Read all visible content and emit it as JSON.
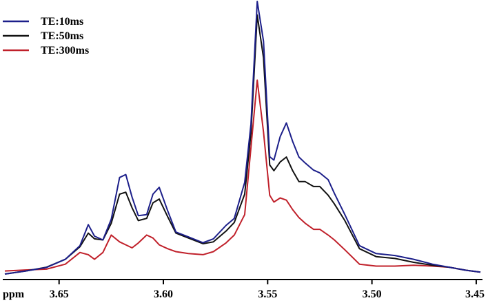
{
  "chart_data": {
    "type": "line",
    "title": "",
    "xlabel": "ppm",
    "ylabel": "",
    "x_reversed": true,
    "xlim": [
      3.677,
      3.447
    ],
    "ylim": [
      0,
      1.0
    ],
    "grid": false,
    "legend_position": "top-left",
    "x_ticks": [
      {
        "value": 3.65,
        "label": "3.65"
      },
      {
        "value": 3.6,
        "label": "3.60"
      },
      {
        "value": 3.55,
        "label": "3.55"
      },
      {
        "value": 3.5,
        "label": "3.50"
      },
      {
        "value": 3.45,
        "label": "3.45"
      }
    ],
    "series": [
      {
        "name": "TE:10ms",
        "color": "#1c1f8a",
        "points": [
          [
            3.676,
            0.0
          ],
          [
            3.666,
            0.011
          ],
          [
            3.656,
            0.024
          ],
          [
            3.647,
            0.054
          ],
          [
            3.64,
            0.104
          ],
          [
            3.636,
            0.181
          ],
          [
            3.633,
            0.139
          ],
          [
            3.629,
            0.125
          ],
          [
            3.625,
            0.201
          ],
          [
            3.621,
            0.354
          ],
          [
            3.618,
            0.365
          ],
          [
            3.615,
            0.282
          ],
          [
            3.612,
            0.214
          ],
          [
            3.608,
            0.218
          ],
          [
            3.605,
            0.293
          ],
          [
            3.602,
            0.318
          ],
          [
            3.598,
            0.233
          ],
          [
            3.594,
            0.154
          ],
          [
            3.588,
            0.136
          ],
          [
            3.581,
            0.115
          ],
          [
            3.576,
            0.129
          ],
          [
            3.57,
            0.178
          ],
          [
            3.566,
            0.204
          ],
          [
            3.561,
            0.336
          ],
          [
            3.558,
            0.55
          ],
          [
            3.555,
            1.0
          ],
          [
            3.552,
            0.854
          ],
          [
            3.549,
            0.43
          ],
          [
            3.547,
            0.418
          ],
          [
            3.544,
            0.504
          ],
          [
            3.541,
            0.554
          ],
          [
            3.538,
            0.486
          ],
          [
            3.535,
            0.429
          ],
          [
            3.532,
            0.407
          ],
          [
            3.528,
            0.381
          ],
          [
            3.525,
            0.371
          ],
          [
            3.521,
            0.346
          ],
          [
            3.518,
            0.296
          ],
          [
            3.513,
            0.218
          ],
          [
            3.506,
            0.104
          ],
          [
            3.498,
            0.075
          ],
          [
            3.489,
            0.068
          ],
          [
            3.48,
            0.054
          ],
          [
            3.471,
            0.036
          ],
          [
            3.463,
            0.025
          ],
          [
            3.455,
            0.014
          ],
          [
            3.448,
            0.007
          ]
        ]
      },
      {
        "name": "TE:50ms",
        "color": "#111111",
        "points": [
          [
            3.676,
            0.0
          ],
          [
            3.666,
            0.011
          ],
          [
            3.656,
            0.025
          ],
          [
            3.647,
            0.054
          ],
          [
            3.64,
            0.1
          ],
          [
            3.636,
            0.15
          ],
          [
            3.633,
            0.129
          ],
          [
            3.629,
            0.125
          ],
          [
            3.625,
            0.186
          ],
          [
            3.621,
            0.293
          ],
          [
            3.618,
            0.3
          ],
          [
            3.615,
            0.243
          ],
          [
            3.612,
            0.196
          ],
          [
            3.608,
            0.204
          ],
          [
            3.605,
            0.261
          ],
          [
            3.602,
            0.275
          ],
          [
            3.598,
            0.211
          ],
          [
            3.594,
            0.15
          ],
          [
            3.588,
            0.132
          ],
          [
            3.581,
            0.111
          ],
          [
            3.576,
            0.118
          ],
          [
            3.57,
            0.157
          ],
          [
            3.566,
            0.189
          ],
          [
            3.561,
            0.293
          ],
          [
            3.558,
            0.518
          ],
          [
            3.555,
            0.95
          ],
          [
            3.552,
            0.793
          ],
          [
            3.549,
            0.4
          ],
          [
            3.547,
            0.379
          ],
          [
            3.544,
            0.411
          ],
          [
            3.541,
            0.429
          ],
          [
            3.538,
            0.379
          ],
          [
            3.535,
            0.339
          ],
          [
            3.532,
            0.339
          ],
          [
            3.528,
            0.321
          ],
          [
            3.525,
            0.321
          ],
          [
            3.521,
            0.289
          ],
          [
            3.518,
            0.257
          ],
          [
            3.513,
            0.196
          ],
          [
            3.506,
            0.093
          ],
          [
            3.498,
            0.064
          ],
          [
            3.489,
            0.057
          ],
          [
            3.48,
            0.043
          ],
          [
            3.471,
            0.032
          ],
          [
            3.463,
            0.025
          ],
          [
            3.455,
            0.014
          ],
          [
            3.448,
            0.007
          ]
        ]
      },
      {
        "name": "TE:300ms",
        "color": "#c0202a",
        "points": [
          [
            3.676,
            0.011
          ],
          [
            3.666,
            0.015
          ],
          [
            3.656,
            0.018
          ],
          [
            3.647,
            0.036
          ],
          [
            3.64,
            0.079
          ],
          [
            3.636,
            0.071
          ],
          [
            3.633,
            0.054
          ],
          [
            3.629,
            0.079
          ],
          [
            3.625,
            0.143
          ],
          [
            3.621,
            0.118
          ],
          [
            3.618,
            0.107
          ],
          [
            3.615,
            0.096
          ],
          [
            3.612,
            0.114
          ],
          [
            3.608,
            0.143
          ],
          [
            3.605,
            0.132
          ],
          [
            3.602,
            0.107
          ],
          [
            3.598,
            0.093
          ],
          [
            3.594,
            0.082
          ],
          [
            3.588,
            0.075
          ],
          [
            3.581,
            0.071
          ],
          [
            3.576,
            0.082
          ],
          [
            3.57,
            0.114
          ],
          [
            3.566,
            0.143
          ],
          [
            3.561,
            0.218
          ],
          [
            3.558,
            0.464
          ],
          [
            3.555,
            0.711
          ],
          [
            3.552,
            0.521
          ],
          [
            3.549,
            0.289
          ],
          [
            3.547,
            0.264
          ],
          [
            3.544,
            0.279
          ],
          [
            3.541,
            0.271
          ],
          [
            3.538,
            0.236
          ],
          [
            3.535,
            0.207
          ],
          [
            3.532,
            0.186
          ],
          [
            3.528,
            0.164
          ],
          [
            3.525,
            0.164
          ],
          [
            3.521,
            0.143
          ],
          [
            3.518,
            0.125
          ],
          [
            3.513,
            0.089
          ],
          [
            3.506,
            0.036
          ],
          [
            3.498,
            0.029
          ],
          [
            3.489,
            0.029
          ],
          [
            3.48,
            0.032
          ],
          [
            3.471,
            0.029
          ],
          [
            3.463,
            0.025
          ],
          [
            3.455,
            0.014
          ],
          [
            3.448,
            0.007
          ]
        ]
      }
    ]
  }
}
